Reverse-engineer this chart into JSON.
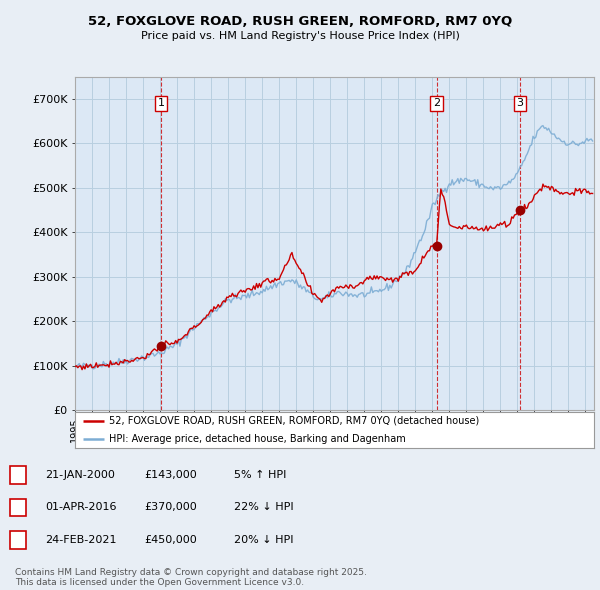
{
  "title1": "52, FOXGLOVE ROAD, RUSH GREEN, ROMFORD, RM7 0YQ",
  "title2": "Price paid vs. HM Land Registry's House Price Index (HPI)",
  "ylim": [
    0,
    750000
  ],
  "yticks": [
    0,
    100000,
    200000,
    300000,
    400000,
    500000,
    600000,
    700000
  ],
  "ytick_labels": [
    "£0",
    "£100K",
    "£200K",
    "£300K",
    "£400K",
    "£500K",
    "£600K",
    "£700K"
  ],
  "xlim_start": 1995.0,
  "xlim_end": 2025.5,
  "bg_color": "#e8eef5",
  "plot_bg_color": "#dce8f5",
  "grid_color": "#b8cfe0",
  "sale_color": "#cc0000",
  "hpi_color": "#7dadd4",
  "sale_dates": [
    2000.06,
    2016.25,
    2021.15
  ],
  "sale_prices": [
    143000,
    370000,
    450000
  ],
  "sale_labels": [
    "1",
    "2",
    "3"
  ],
  "dashed_line_color": "#cc0000",
  "legend_text1": "52, FOXGLOVE ROAD, RUSH GREEN, ROMFORD, RM7 0YQ (detached house)",
  "legend_text2": "HPI: Average price, detached house, Barking and Dagenham",
  "table_rows": [
    {
      "num": "1",
      "date": "21-JAN-2000",
      "price": "£143,000",
      "change": "5% ↑ HPI"
    },
    {
      "num": "2",
      "date": "01-APR-2016",
      "price": "£370,000",
      "change": "22% ↓ HPI"
    },
    {
      "num": "3",
      "date": "24-FEB-2021",
      "price": "£450,000",
      "change": "20% ↓ HPI"
    }
  ],
  "footnote": "Contains HM Land Registry data © Crown copyright and database right 2025.\nThis data is licensed under the Open Government Licence v3.0."
}
